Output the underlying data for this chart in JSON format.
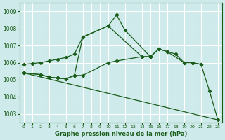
{
  "background_color": "#ceeaea",
  "grid_color": "#ffffff",
  "line_color": "#1a5c1a",
  "title": "Graphe pression niveau de la mer (hPa)",
  "xlim": [
    -0.5,
    23.5
  ],
  "ylim": [
    1002.5,
    1009.5
  ],
  "yticks": [
    1003,
    1004,
    1005,
    1006,
    1007,
    1008,
    1009
  ],
  "xticks": [
    0,
    1,
    2,
    3,
    4,
    5,
    6,
    7,
    8,
    9,
    10,
    11,
    12,
    13,
    14,
    15,
    16,
    17,
    18,
    19,
    20,
    21,
    22,
    23
  ],
  "lines": [
    {
      "x": [
        0,
        1,
        2,
        3,
        4,
        5,
        6,
        7,
        10,
        11,
        12,
        15,
        16,
        17,
        19,
        20,
        21,
        22,
        23
      ],
      "y": [
        1005.9,
        1005.95,
        1006.0,
        1006.1,
        1006.2,
        1006.3,
        1006.5,
        1007.5,
        1008.15,
        1008.8,
        1007.9,
        1006.35,
        1006.8,
        1006.65,
        1006.0,
        1006.0,
        1005.9,
        1004.35,
        1002.65
      ],
      "has_markers": true
    },
    {
      "x": [
        0,
        2,
        3,
        4,
        5,
        6,
        7,
        10,
        14,
        15
      ],
      "y": [
        1005.4,
        1005.3,
        1005.15,
        1005.1,
        1005.05,
        1005.25,
        1007.5,
        1008.15,
        1006.35,
        1006.35
      ],
      "has_markers": true
    },
    {
      "x": [
        0,
        2,
        3,
        4,
        5,
        6,
        7,
        10,
        11,
        14,
        15,
        16,
        17,
        18,
        19,
        20,
        21
      ],
      "y": [
        1005.4,
        1005.3,
        1005.15,
        1005.1,
        1005.05,
        1005.25,
        1005.25,
        1006.0,
        1006.1,
        1006.35,
        1006.35,
        1006.8,
        1006.65,
        1006.5,
        1006.0,
        1006.0,
        1005.9
      ],
      "has_markers": true
    },
    {
      "x": [
        0,
        23
      ],
      "y": [
        1005.4,
        1002.65
      ],
      "has_markers": false
    }
  ]
}
